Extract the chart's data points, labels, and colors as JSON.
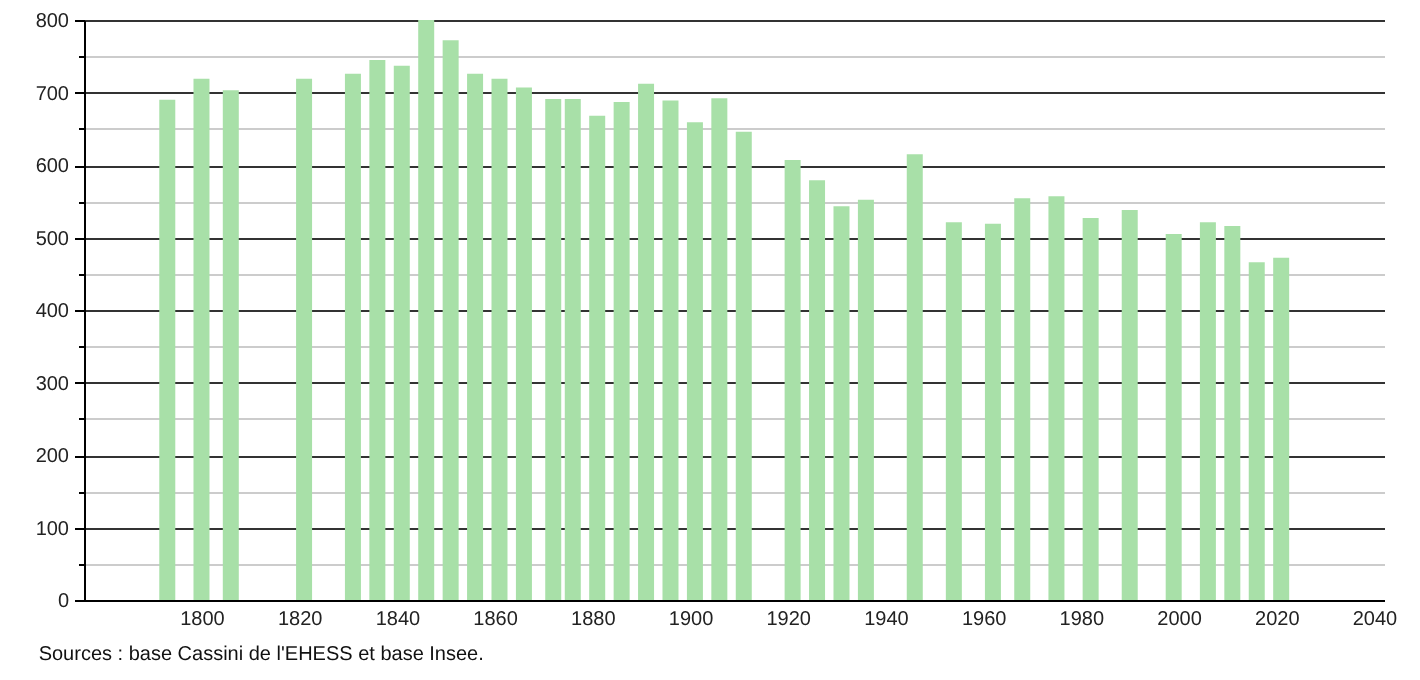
{
  "chart_data": {
    "type": "bar",
    "x": [
      1793,
      1800,
      1806,
      1821,
      1831,
      1836,
      1841,
      1846,
      1851,
      1856,
      1861,
      1866,
      1872,
      1876,
      1881,
      1886,
      1891,
      1896,
      1901,
      1906,
      1911,
      1921,
      1926,
      1931,
      1936,
      1946,
      1954,
      1962,
      1968,
      1975,
      1982,
      1990,
      1999,
      2006,
      2011,
      2016,
      2021
    ],
    "values": [
      690,
      719,
      703,
      719,
      726,
      745,
      737,
      800,
      772,
      726,
      719,
      707,
      691,
      691,
      668,
      687,
      712,
      689,
      659,
      692,
      646,
      607,
      579,
      543,
      552,
      615,
      521,
      519,
      554,
      557,
      527,
      538,
      505,
      521,
      516,
      466,
      472
    ],
    "color": "#a8e0a8",
    "xlim": [
      1778,
      2040
    ],
    "xticks": [
      1800,
      1820,
      1840,
      1860,
      1880,
      1900,
      1920,
      1940,
      1960,
      1980,
      2000,
      2020,
      2040
    ],
    "ylim": [
      0,
      800
    ],
    "yticks": [
      0,
      {
        "value": 50,
        "label": null
      },
      100,
      {
        "value": 150,
        "label": null
      },
      200,
      {
        "value": 250,
        "label": null
      },
      300,
      {
        "value": 350,
        "label": null
      },
      400,
      {
        "value": 450,
        "label": null
      },
      500,
      {
        "value": 550,
        "label": null
      },
      600,
      {
        "value": 650,
        "label": null
      },
      700,
      {
        "value": 750,
        "label": null
      },
      800
    ],
    "grid": "y",
    "annotations": [
      "Sources : base Cassini de l'EHESS et base Insee."
    ]
  }
}
